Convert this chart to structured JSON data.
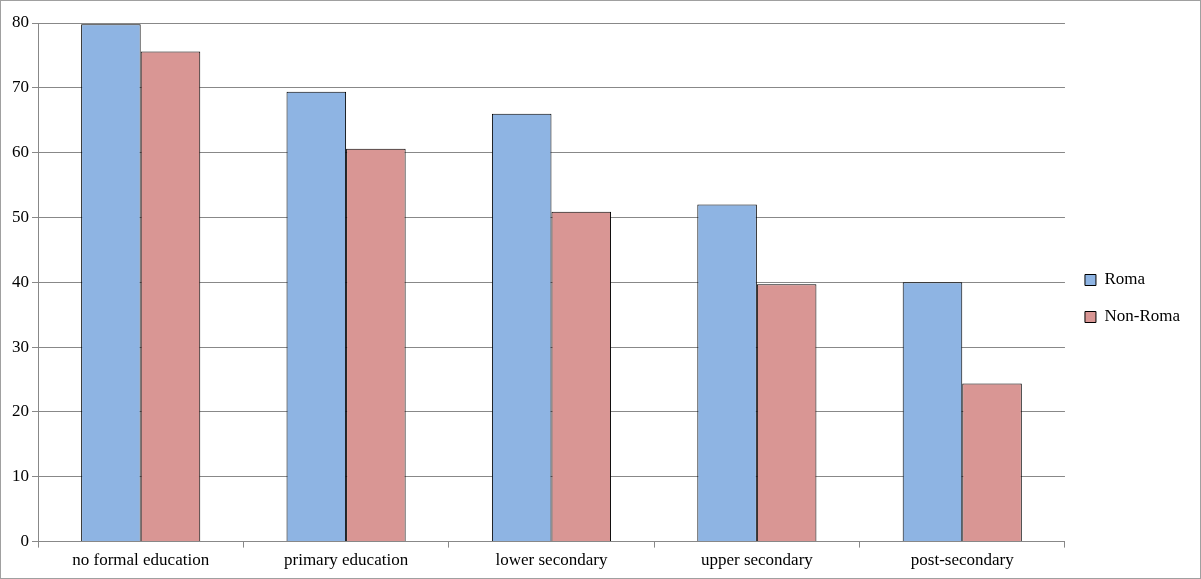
{
  "chart_data": {
    "type": "bar",
    "categories": [
      "no formal education",
      "primary education",
      "lower secondary",
      "upper secondary",
      "post-secondary"
    ],
    "series": [
      {
        "name": "Roma",
        "color": "#8eb4e3",
        "values": [
          79.8,
          69.4,
          66.0,
          52.0,
          40.0
        ]
      },
      {
        "name": "Non-Roma",
        "color": "#d99694",
        "values": [
          75.6,
          60.6,
          50.9,
          39.7,
          24.4
        ]
      }
    ],
    "ylim": [
      0,
      80
    ],
    "yticks": [
      0,
      10,
      20,
      30,
      40,
      50,
      60,
      70,
      80
    ],
    "grid": "y",
    "legend": "right"
  }
}
